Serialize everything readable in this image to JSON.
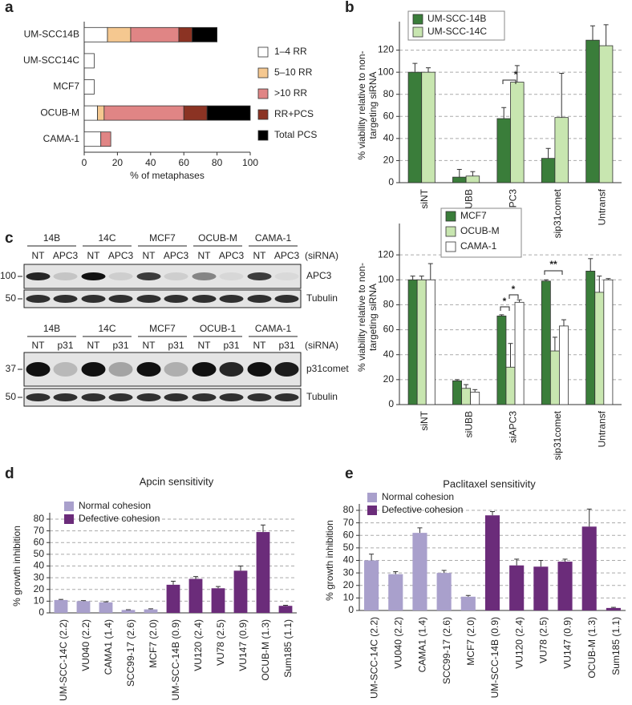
{
  "panel_labels": [
    "a",
    "b",
    "c",
    "d",
    "e"
  ],
  "chart_data": [
    {
      "type": "barh",
      "categories": [
        "UM-SCC14B",
        "UM-SCC14C",
        "MCF7",
        "OCUB-M",
        "CAMA-1"
      ],
      "series": [
        {
          "name": "1–4 RR",
          "color": "#ffffff",
          "values": [
            14,
            6,
            6,
            8,
            10
          ]
        },
        {
          "name": "5–10 RR",
          "color": "#f5c890",
          "values": [
            14,
            null,
            null,
            4,
            null
          ]
        },
        {
          "name": ">10 RR",
          "color": "#e08585",
          "values": [
            29,
            null,
            null,
            48,
            6
          ]
        },
        {
          "name": "RR+PCS",
          "color": "#8b3323",
          "values": [
            8,
            null,
            null,
            14,
            null
          ]
        },
        {
          "name": "Total PCS",
          "color": "#000000",
          "values": [
            15,
            null,
            null,
            26,
            null
          ]
        }
      ],
      "xlim": [
        0,
        100
      ],
      "xticks": [
        0,
        20,
        40,
        60,
        80,
        100
      ],
      "xlabel": "% of metaphases"
    },
    {
      "type": "bar",
      "categories": [
        "siNT",
        "siUBB",
        "siAPC3",
        "sip31comet",
        "Untransf"
      ],
      "series": [
        {
          "name": "UM-SCC-14B",
          "color": "#3a7d3a",
          "values": [
            100,
            5,
            58,
            22,
            129
          ],
          "errors": [
            8,
            7,
            10,
            9,
            13
          ]
        },
        {
          "name": "UM-SCC-14C",
          "color": "#c8e6b0",
          "values": [
            100,
            6,
            91,
            59,
            124
          ],
          "errors": [
            4,
            4,
            15,
            40,
            19
          ]
        }
      ],
      "ylim": [
        0,
        140
      ],
      "yticks": [
        0,
        20,
        40,
        60,
        80,
        100,
        120
      ],
      "grid": true,
      "legend_frame": true,
      "ylabel": [
        "% viability relative to non-",
        "targeting siRNA"
      ],
      "annotations": [
        "*"
      ]
    },
    {
      "type": "bar",
      "categories": [
        "siNT",
        "siUBB",
        "siAPC3",
        "sip31comet",
        "Untransf"
      ],
      "series": [
        {
          "name": "MCF7",
          "color": "#3a7d3a",
          "values": [
            100,
            19,
            71,
            99,
            107
          ],
          "errors": [
            3,
            1,
            1,
            1,
            10
          ]
        },
        {
          "name": "OCUB-M",
          "color": "#c8e6b0",
          "values": [
            100,
            13,
            30,
            43,
            90
          ],
          "errors": [
            3,
            3,
            19,
            11,
            13
          ]
        },
        {
          "name": "CAMA-1",
          "color": "#ffffff",
          "values": [
            100,
            10,
            82,
            63,
            100
          ],
          "errors": [
            13,
            2,
            2,
            5,
            1
          ]
        }
      ],
      "ylim": [
        0,
        140
      ],
      "yticks": [
        0,
        20,
        40,
        60,
        80,
        100,
        120
      ],
      "grid": true,
      "legend_frame": true,
      "ylabel": [
        "% viability relative to non-",
        "targeting siRNA"
      ],
      "annotations": [
        "*",
        "*",
        "**"
      ]
    },
    {
      "type": "bar",
      "title": "Apcin sensitivity",
      "categories": [
        "UM-SCC-14C (2.2)",
        "VU040 (2.2)",
        "CAMA1 (1.4)",
        "SCC99-17 (2.6)",
        "MCF7 (2.0)",
        "UM-SCC-14B (0.9)",
        "VU120 (2.4)",
        "VU78 (2.5)",
        "VU147 (0.9)",
        "OCUB-M (1.3)",
        "Sum185 (1.1)"
      ],
      "series": [
        {
          "name": "Normal cohesion",
          "color": "#a9a0cc",
          "values": [
            11,
            10,
            9,
            2.5,
            3,
            null,
            null,
            null,
            null,
            null,
            null
          ],
          "errors": [
            0.5,
            0.5,
            0.5,
            0.2,
            0.5,
            null,
            null,
            null,
            null,
            null,
            null
          ]
        },
        {
          "name": "Defective cohesion",
          "color": "#6b2c7a",
          "values": [
            null,
            null,
            null,
            null,
            null,
            24,
            29,
            21,
            36,
            69,
            6
          ],
          "errors": [
            null,
            null,
            null,
            null,
            null,
            3,
            2,
            1.5,
            4,
            6,
            0.5
          ]
        }
      ],
      "ylim": [
        0,
        80
      ],
      "yticks": [
        0,
        10,
        20,
        30,
        40,
        50,
        60,
        70,
        80
      ],
      "grid": true,
      "legend_frame": false,
      "ylabel": [
        "% growth inhibition"
      ]
    },
    {
      "type": "bar",
      "title": "Paclitaxel sensitivity",
      "categories": [
        "UM-SCC-14C (2.2)",
        "VU040 (2.2)",
        "CAMA1 (1.4)",
        "SCC99-17 (2.6)",
        "MCF7 (2.0)",
        "UM-SCC-14B (0.9)",
        "VU120 (2.4)",
        "VU78 (2.5)",
        "VU147 (0.9)",
        "OCUB-M (1.3)",
        "Sum185 (1.1)"
      ],
      "series": [
        {
          "name": "Normal cohesion",
          "color": "#a9a0cc",
          "values": [
            40,
            29,
            62,
            30,
            11,
            null,
            null,
            null,
            null,
            null,
            null
          ],
          "errors": [
            5,
            2,
            4,
            2,
            1,
            null,
            null,
            null,
            null,
            null,
            null
          ]
        },
        {
          "name": "Defective cohesion",
          "color": "#6b2c7a",
          "values": [
            null,
            null,
            null,
            null,
            null,
            76,
            36,
            35,
            39,
            67,
            2
          ],
          "errors": [
            null,
            null,
            null,
            null,
            null,
            3,
            5,
            5,
            2,
            14,
            0.5
          ]
        }
      ],
      "ylim": [
        0,
        80
      ],
      "yticks": [
        0,
        10,
        20,
        30,
        40,
        50,
        60,
        70,
        80
      ],
      "grid": true,
      "legend_frame": false,
      "ylabel": [
        "% growth inhibition"
      ]
    }
  ],
  "blots": [
    {
      "cell_lines": [
        "14B",
        "14C",
        "MCF7",
        "OCUB-M",
        "CAMA-1"
      ],
      "lanes": [
        "NT",
        "APC3"
      ],
      "condition": "(siRNA)",
      "rows": [
        {
          "marker": "100",
          "label": "APC3"
        },
        {
          "marker": "50",
          "label": "Tubulin"
        }
      ]
    },
    {
      "cell_lines": [
        "14B",
        "14C",
        "MCF7",
        "OCUB-1",
        "CAMA-1"
      ],
      "lanes": [
        "NT",
        "p31"
      ],
      "condition": "(siRNA)",
      "rows": [
        {
          "marker": "37",
          "label": "p31comet"
        },
        {
          "marker": "50",
          "label": "Tubulin"
        }
      ]
    }
  ]
}
